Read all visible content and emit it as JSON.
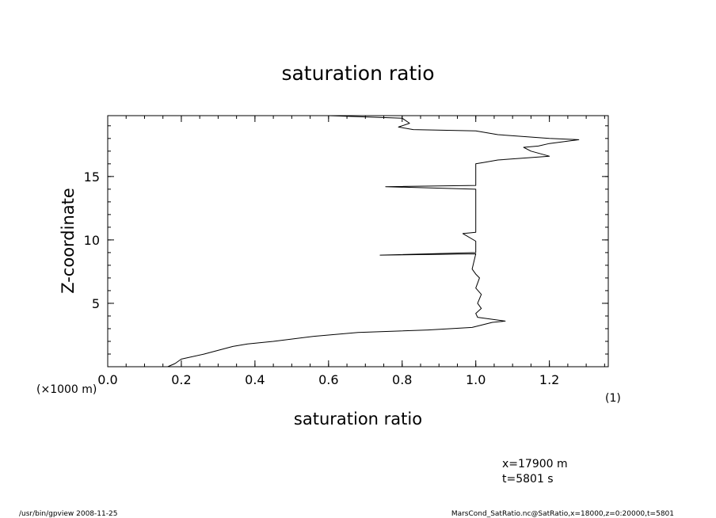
{
  "chart_data": {
    "type": "line",
    "title": "saturation ratio",
    "xlabel": "saturation ratio",
    "ylabel": "Z-coordinate",
    "x_unit_label": "(1)",
    "y_unit_label": "(×1000 m)",
    "xlim": [
      0.0,
      1.36
    ],
    "ylim": [
      0.0,
      19.8
    ],
    "x_ticks": [
      0.0,
      0.2,
      0.4,
      0.6,
      0.8,
      1.0,
      1.2
    ],
    "x_tick_labels": [
      "0.0",
      "0.2",
      "0.4",
      "0.6",
      "0.8",
      "1.0",
      "1.2"
    ],
    "x_minor_step": 0.05,
    "y_ticks": [
      5,
      10,
      15
    ],
    "y_tick_labels": [
      "5",
      "10",
      "15"
    ],
    "y_minor_step": 1,
    "grid": false,
    "legend": "none",
    "series": [
      {
        "x": [
          0.163,
          0.183,
          0.2,
          0.262,
          0.34,
          0.38,
          0.45,
          0.56,
          0.68,
          0.87,
          0.99,
          1.045,
          1.08,
          1.005,
          1.0,
          1.015,
          1.005,
          1.015,
          1.0,
          1.01,
          1.0,
          0.99,
          1.0,
          0.74,
          1.0,
          1.0,
          1.0,
          0.965,
          1.0,
          1.0,
          1.0,
          0.755,
          1.0,
          1.0,
          1.0,
          1.02,
          1.06,
          1.2,
          1.15,
          1.13,
          1.17,
          1.2,
          1.28,
          1.2,
          1.06,
          1.0,
          0.83,
          0.79,
          0.82,
          0.8,
          0.6
        ],
        "y": [
          0.0,
          0.25,
          0.6,
          1.0,
          1.6,
          1.8,
          2.0,
          2.4,
          2.7,
          2.9,
          3.1,
          3.5,
          3.6,
          3.9,
          4.2,
          4.6,
          5.0,
          5.7,
          6.2,
          7.0,
          7.3,
          7.7,
          8.9,
          8.8,
          9.0,
          9.1,
          9.9,
          10.5,
          10.6,
          11.0,
          14.0,
          14.2,
          14.3,
          15.0,
          16.0,
          16.1,
          16.3,
          16.6,
          17.0,
          17.3,
          17.4,
          17.6,
          17.9,
          18.0,
          18.3,
          18.6,
          18.7,
          18.9,
          19.2,
          19.6,
          19.8
        ]
      }
    ]
  },
  "annotations": {
    "x_position": "x=17900 m",
    "time": "t=5801 s"
  },
  "footer": {
    "left": "/usr/bin/gpview  2008-11-25",
    "right": "MarsCond_SatRatio.nc@SatRatio,x=18000,z=0:20000,t=5801"
  }
}
